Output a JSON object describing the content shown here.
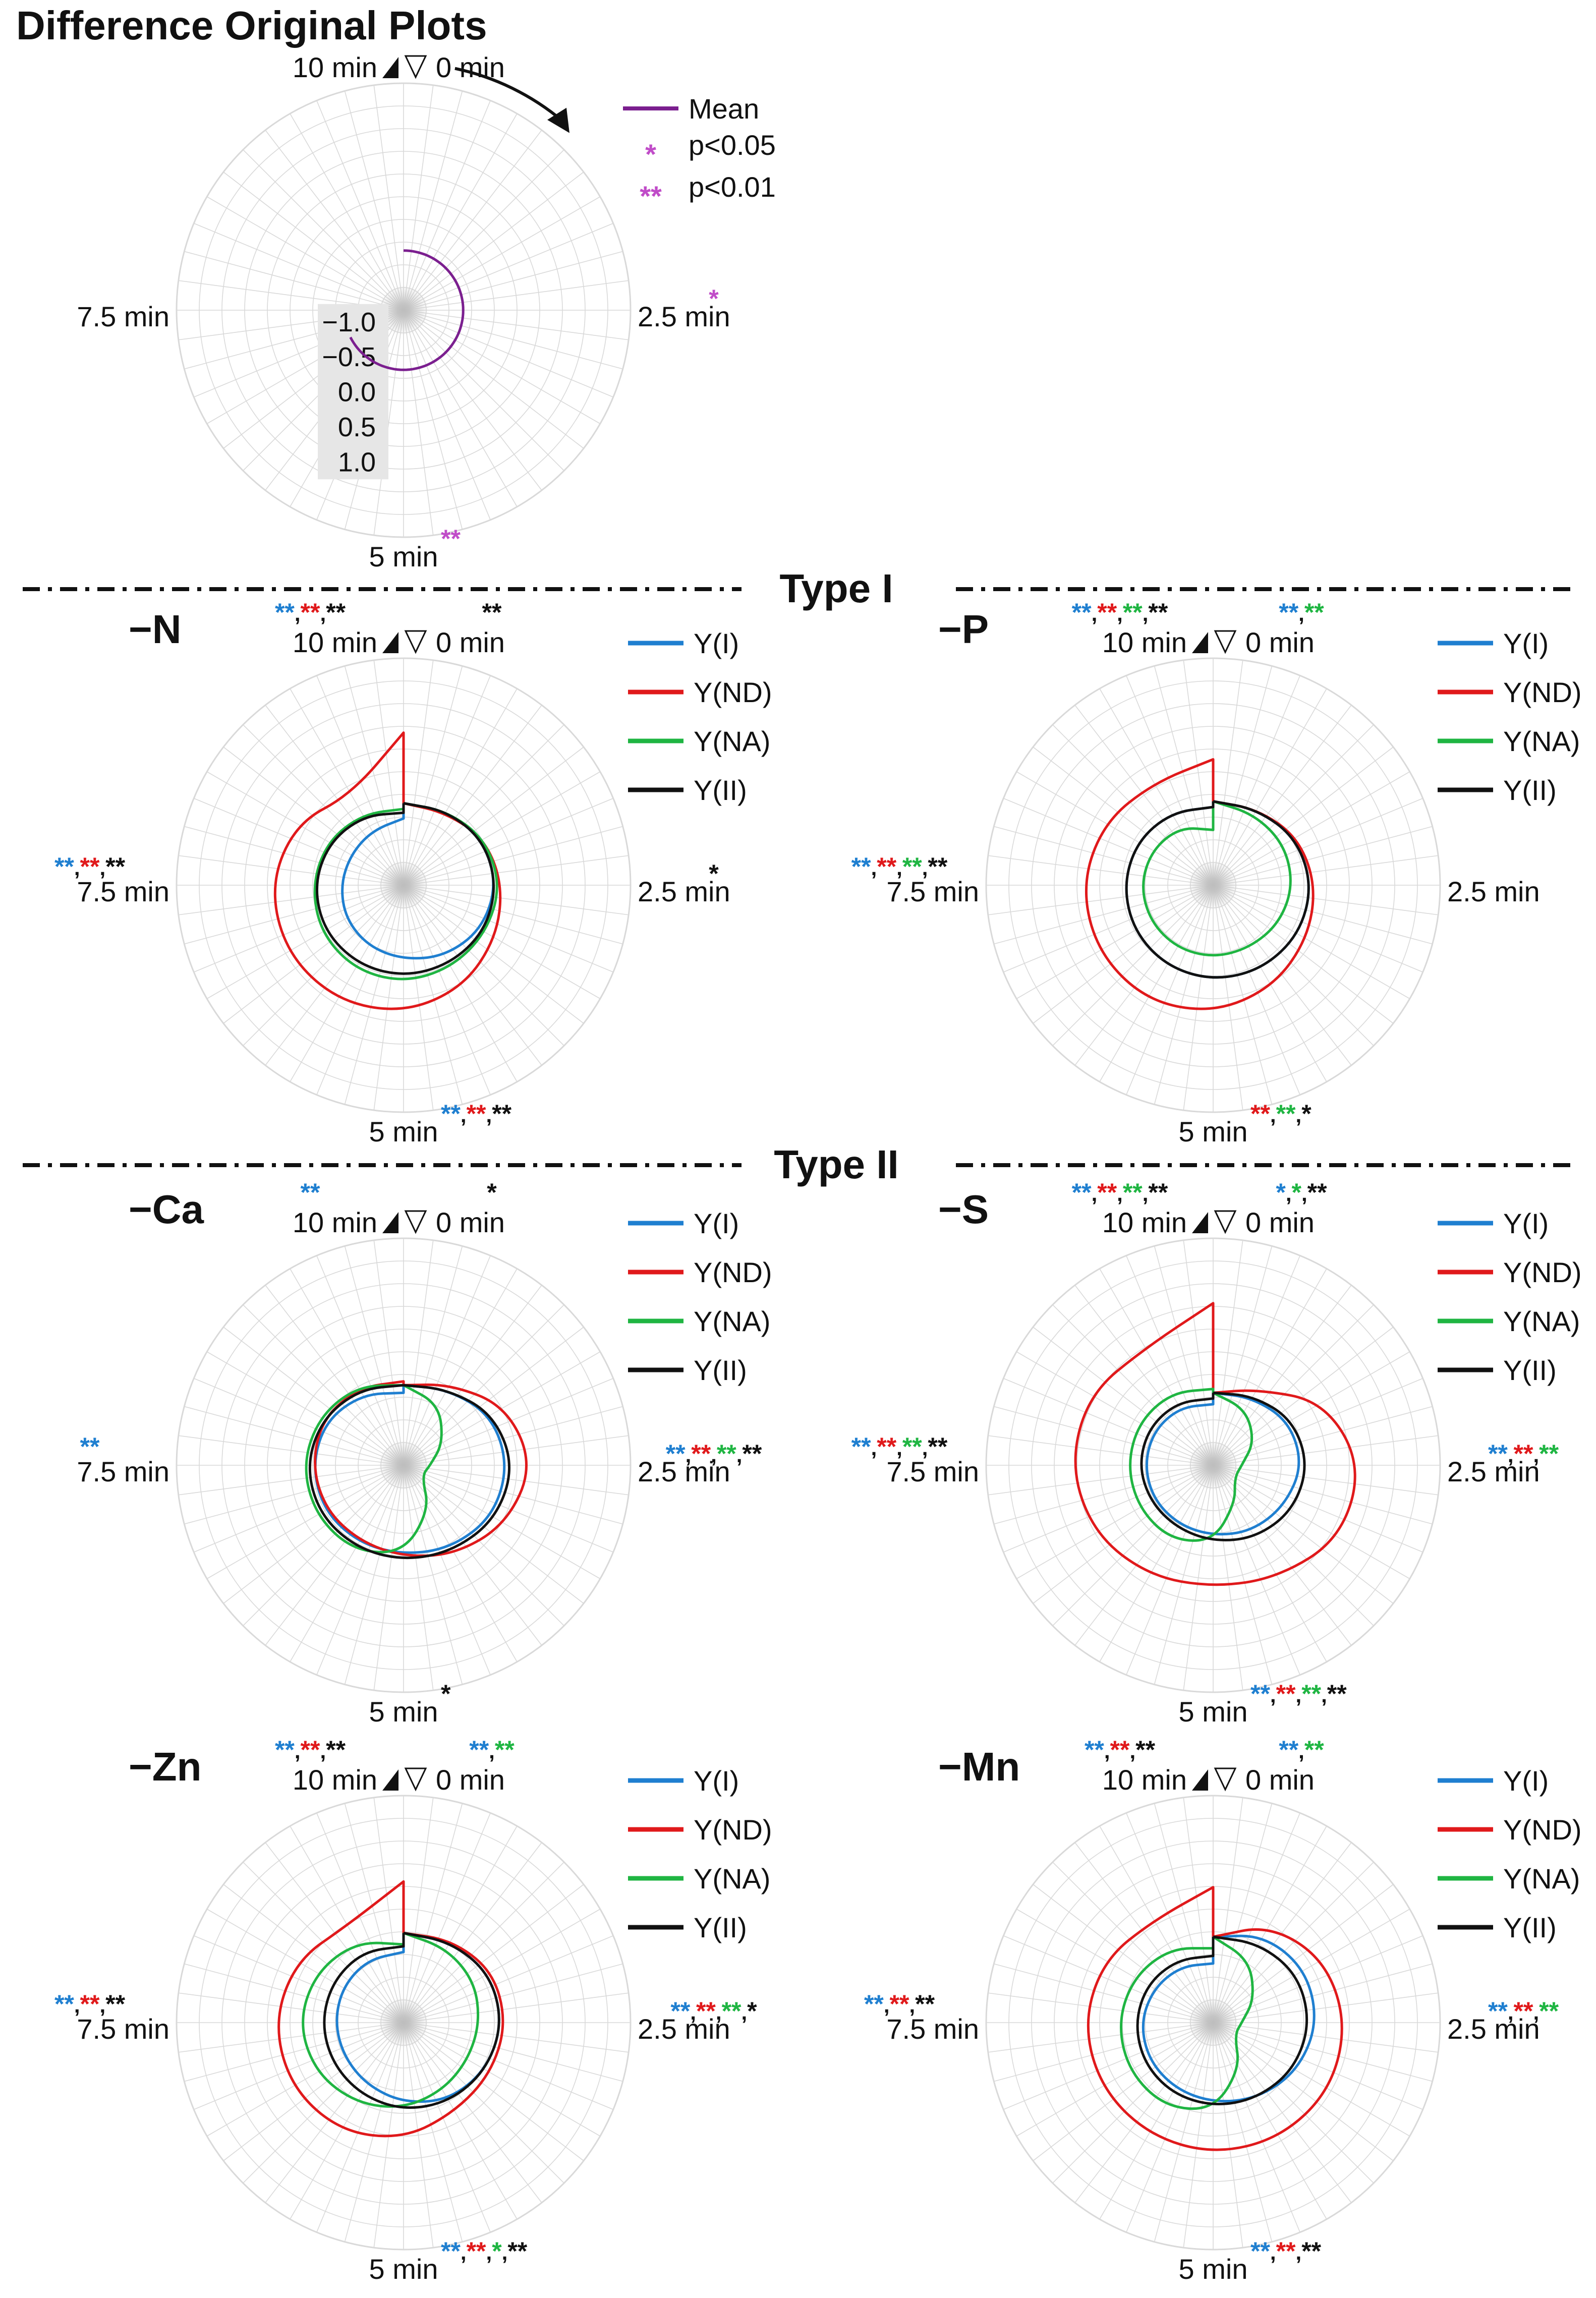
{
  "figure_title": "Difference Original Plots",
  "section_labels": [
    "Type I",
    "Type II"
  ],
  "colors": {
    "mean": "#7b1f8f",
    "mean_sig": "#c04cc8",
    "Y(I)": "#1f7fd0",
    "Y(ND)": "#e0191b",
    "Y(NA)": "#1fb542",
    "Y(II)": "#111111",
    "grid": "#d9d9d9",
    "center": "#bdbdbd"
  },
  "chart_data": [
    {
      "id": "mean",
      "type": "radar",
      "title": "Difference Original Plots",
      "axis_labels": {
        "top_left": "10 min",
        "top_right": "0 min",
        "right": "2.5 min",
        "bottom": "5 min",
        "left": "7.5 min"
      },
      "radial_ticks": [
        "−1.0",
        "−0.5",
        "0.0",
        "0.5",
        "1.0"
      ],
      "rlim": [
        -1.2,
        1.2
      ],
      "legend": [
        {
          "kind": "line",
          "label": "Mean",
          "color": "mean"
        },
        {
          "kind": "mark",
          "symbol": "*",
          "label": "p<0.05",
          "color": "mean_sig"
        },
        {
          "kind": "mark",
          "symbol": "**",
          "label": "p<0.01",
          "color": "mean_sig"
        }
      ],
      "series": [
        {
          "name": "Mean",
          "color": "mean",
          "theta_deg": [
            0,
            45,
            90,
            135,
            180,
            225,
            243
          ],
          "r": [
            -0.55,
            -0.55,
            -0.55,
            -0.55,
            -0.55,
            -0.55,
            -0.55
          ]
        }
      ],
      "significance": {
        "top_left": [],
        "top_right": [],
        "right": [
          {
            "s": "*",
            "c": "mean_sig"
          }
        ],
        "bottom": [
          {
            "s": "**",
            "c": "mean_sig"
          }
        ],
        "left": []
      }
    },
    {
      "id": "N",
      "type": "radar",
      "title": "−N",
      "axis_labels": {
        "top_left": "10 min",
        "top_right": "0 min",
        "right": "2.5 min",
        "bottom": "5 min",
        "left": "7.5 min"
      },
      "legend": [
        "Y(I)",
        "Y(ND)",
        "Y(NA)",
        "Y(II)"
      ],
      "series": [
        {
          "name": "Y(I)",
          "values": [
            0.86,
            0.9,
            0.96,
            0.98,
            0.94,
            0.86,
            0.78,
            0.74,
            0.7,
            0.66,
            0.64,
            0.66,
            0.7
          ]
        },
        {
          "name": "Y(ND)",
          "values": [
            0.86,
            0.88,
            0.98,
            1.04,
            1.12,
            1.24,
            1.34,
            1.4,
            1.42,
            1.4,
            1.3,
            1.1,
            1.6
          ]
        },
        {
          "name": "Y(NA)",
          "values": [
            0.86,
            0.9,
            0.98,
            1.02,
            1.0,
            1.0,
            1.02,
            1.02,
            1.0,
            0.96,
            0.92,
            0.86,
            0.8
          ]
        },
        {
          "name": "Y(II)",
          "values": [
            0.86,
            0.9,
            0.96,
            0.98,
            0.98,
            0.96,
            0.96,
            0.96,
            0.96,
            0.94,
            0.9,
            0.84,
            0.76
          ]
        }
      ],
      "significance": {
        "top_left": [
          {
            "s": "**",
            "c": "Y(I)"
          },
          {
            "s": "**",
            "c": "Y(ND)"
          },
          {
            "s": "**",
            "c": "Y(II)"
          }
        ],
        "top_right": [
          {
            "s": "**",
            "c": "Y(II)"
          }
        ],
        "right": [
          {
            "s": "*",
            "c": "Y(II)"
          }
        ],
        "bottom": [
          {
            "s": "**",
            "c": "Y(I)"
          },
          {
            "s": "**",
            "c": "Y(ND)"
          },
          {
            "s": "**",
            "c": "Y(II)"
          }
        ],
        "left": [
          {
            "s": "**",
            "c": "Y(I)"
          },
          {
            "s": "**",
            "c": "Y(ND)"
          },
          {
            "s": "**",
            "c": "Y(II)"
          }
        ]
      }
    },
    {
      "id": "P",
      "type": "radar",
      "title": "−P",
      "axis_labels": {
        "top_left": "10 min",
        "top_right": "0 min",
        "right": "2.5 min",
        "bottom": "5 min",
        "left": "7.5 min"
      },
      "legend": [
        "Y(I)",
        "Y(ND)",
        "Y(NA)",
        "Y(II)"
      ],
      "series": [
        {
          "name": "Y(I)",
          "values": [
            0.88,
            0.92,
            1.0,
            1.04,
            1.04,
            1.02,
            1.0,
            0.98,
            0.96,
            0.94,
            0.92,
            0.88,
            0.82
          ]
        },
        {
          "name": "Y(ND)",
          "values": [
            0.88,
            0.92,
            1.02,
            1.08,
            1.14,
            1.24,
            1.34,
            1.4,
            1.4,
            1.38,
            1.32,
            1.24,
            1.32
          ]
        },
        {
          "name": "Y(NA)",
          "values": [
            0.88,
            0.86,
            0.86,
            0.84,
            0.8,
            0.76,
            0.76,
            0.76,
            0.76,
            0.76,
            0.74,
            0.7,
            0.58
          ]
        },
        {
          "name": "Y(II)",
          "values": [
            0.88,
            0.92,
            1.0,
            1.04,
            1.04,
            1.02,
            1.0,
            0.98,
            0.96,
            0.94,
            0.92,
            0.88,
            0.82
          ]
        }
      ],
      "significance": {
        "top_left": [
          {
            "s": "**",
            "c": "Y(I)"
          },
          {
            "s": "**",
            "c": "Y(ND)"
          },
          {
            "s": "**",
            "c": "Y(NA)"
          },
          {
            "s": "**",
            "c": "Y(II)"
          }
        ],
        "top_right": [
          {
            "s": "**",
            "c": "Y(I)"
          },
          {
            "s": "**",
            "c": "Y(NA)"
          }
        ],
        "right": [],
        "bottom": [
          {
            "s": "**",
            "c": "Y(ND)"
          },
          {
            "s": "**",
            "c": "Y(NA)"
          },
          {
            "s": "*",
            "c": "Y(II)"
          }
        ],
        "left": [
          {
            "s": "**",
            "c": "Y(I)"
          },
          {
            "s": "**",
            "c": "Y(ND)"
          },
          {
            "s": "**",
            "c": "Y(NA)"
          },
          {
            "s": "**",
            "c": "Y(II)"
          }
        ]
      }
    },
    {
      "id": "Ca",
      "type": "radar",
      "title": "−Ca",
      "axis_labels": {
        "top_left": "10 min",
        "top_right": "0 min",
        "right": "2.5 min",
        "bottom": "5 min",
        "left": "7.5 min"
      },
      "legend": [
        "Y(I)",
        "Y(ND)",
        "Y(NA)",
        "Y(II)"
      ],
      "series": [
        {
          "name": "Y(I)",
          "values": [
            0.84,
            0.92,
            1.06,
            1.1,
            1.08,
            1.0,
            0.94,
            0.94,
            0.96,
            0.96,
            0.94,
            0.86,
            0.76
          ]
        },
        {
          "name": "Y(ND)",
          "values": [
            0.84,
            0.98,
            1.24,
            1.36,
            1.24,
            1.08,
            0.96,
            0.92,
            0.94,
            0.96,
            0.98,
            0.94,
            0.88
          ]
        },
        {
          "name": "Y(NA)",
          "values": [
            0.84,
            0.74,
            0.48,
            0.28,
            0.22,
            0.54,
            0.92,
            1.04,
            1.06,
            1.06,
            1.02,
            0.96,
            0.84
          ]
        },
        {
          "name": "Y(II)",
          "values": [
            0.84,
            0.92,
            1.08,
            1.16,
            1.12,
            1.04,
            1.0,
            1.0,
            1.02,
            1.02,
            0.98,
            0.92,
            0.84
          ]
        }
      ],
      "significance": {
        "top_left": [
          {
            "s": "**",
            "c": "Y(I)"
          }
        ],
        "top_right": [
          {
            "s": "*",
            "c": "Y(II)"
          }
        ],
        "right": [
          {
            "s": "**",
            "c": "Y(I)"
          },
          {
            "s": "**",
            "c": "Y(ND)"
          },
          {
            "s": "**",
            "c": "Y(NA)"
          },
          {
            "s": "**",
            "c": "Y(II)"
          }
        ],
        "bottom": [
          {
            "s": "*",
            "c": "Y(II)"
          }
        ],
        "left": [
          {
            "s": "**",
            "c": "Y(I)"
          }
        ]
      }
    },
    {
      "id": "S",
      "type": "radar",
      "title": "−S",
      "axis_labels": {
        "top_left": "10 min",
        "top_right": "0 min",
        "right": "2.5 min",
        "bottom": "5 min",
        "left": "7.5 min"
      },
      "legend": [
        "Y(I)",
        "Y(ND)",
        "Y(NA)",
        "Y(II)"
      ],
      "series": [
        {
          "name": "Y(I)",
          "values": [
            0.76,
            0.82,
            0.92,
            0.94,
            0.86,
            0.8,
            0.74,
            0.72,
            0.72,
            0.72,
            0.72,
            0.7,
            0.64
          ]
        },
        {
          "name": "Y(ND)",
          "values": [
            0.76,
            0.92,
            1.34,
            1.56,
            1.54,
            1.36,
            1.28,
            1.34,
            1.44,
            1.5,
            1.5,
            1.42,
            1.7
          ]
        },
        {
          "name": "Y(NA)",
          "values": [
            0.76,
            0.68,
            0.5,
            0.3,
            0.26,
            0.46,
            0.8,
            0.9,
            0.9,
            0.9,
            0.9,
            0.88,
            0.8
          ]
        },
        {
          "name": "Y(II)",
          "values": [
            0.76,
            0.84,
            0.96,
            1.0,
            0.96,
            0.88,
            0.8,
            0.76,
            0.76,
            0.78,
            0.78,
            0.76,
            0.7
          ]
        }
      ],
      "significance": {
        "top_left": [
          {
            "s": "**",
            "c": "Y(I)"
          },
          {
            "s": "**",
            "c": "Y(ND)"
          },
          {
            "s": "**",
            "c": "Y(NA)"
          },
          {
            "s": "**",
            "c": "Y(II)"
          }
        ],
        "top_right": [
          {
            "s": "*",
            "c": "Y(I)"
          },
          {
            "s": "*",
            "c": "Y(NA)"
          },
          {
            "s": "**",
            "c": "Y(II)"
          }
        ],
        "right": [
          {
            "s": "**",
            "c": "Y(I)"
          },
          {
            "s": "**",
            "c": "Y(ND)"
          },
          {
            "s": "**",
            "c": "Y(NA)"
          }
        ],
        "bottom": [
          {
            "s": "**",
            "c": "Y(I)"
          },
          {
            "s": "**",
            "c": "Y(ND)"
          },
          {
            "s": "**",
            "c": "Y(NA)"
          },
          {
            "s": "**",
            "c": "Y(II)"
          }
        ],
        "left": [
          {
            "s": "**",
            "c": "Y(I)"
          },
          {
            "s": "**",
            "c": "Y(ND)"
          },
          {
            "s": "**",
            "c": "Y(NA)"
          },
          {
            "s": "**",
            "c": "Y(II)"
          }
        ]
      }
    },
    {
      "id": "Zn",
      "type": "radar",
      "title": "−Zn",
      "axis_labels": {
        "top_left": "10 min",
        "top_right": "0 min",
        "right": "2.5 min",
        "bottom": "5 min",
        "left": "7.5 min"
      },
      "legend": [
        "Y(I)",
        "Y(ND)",
        "Y(NA)",
        "Y(II)"
      ],
      "series": [
        {
          "name": "Y(I)",
          "values": [
            0.94,
            0.98,
            1.04,
            1.04,
            1.0,
            0.94,
            0.84,
            0.76,
            0.72,
            0.72,
            0.74,
            0.76,
            0.74
          ]
        },
        {
          "name": "Y(ND)",
          "values": [
            0.94,
            1.0,
            1.08,
            1.08,
            1.06,
            1.08,
            1.22,
            1.32,
            1.36,
            1.36,
            1.3,
            1.18,
            1.48
          ]
        },
        {
          "name": "Y(NA)",
          "values": [
            0.94,
            0.9,
            0.86,
            0.8,
            0.78,
            0.82,
            0.9,
            0.98,
            1.06,
            1.1,
            1.06,
            0.98,
            0.82
          ]
        },
        {
          "name": "Y(II)",
          "values": [
            0.94,
            0.98,
            1.04,
            1.04,
            1.0,
            0.96,
            0.92,
            0.88,
            0.86,
            0.86,
            0.86,
            0.86,
            0.8
          ]
        }
      ],
      "significance": {
        "top_left": [
          {
            "s": "**",
            "c": "Y(I)"
          },
          {
            "s": "**",
            "c": "Y(ND)"
          },
          {
            "s": "**",
            "c": "Y(II)"
          }
        ],
        "top_right": [
          {
            "s": "**",
            "c": "Y(I)"
          },
          {
            "s": "**",
            "c": "Y(NA)"
          }
        ],
        "right": [
          {
            "s": "**",
            "c": "Y(I)"
          },
          {
            "s": "**",
            "c": "Y(ND)"
          },
          {
            "s": "**",
            "c": "Y(NA)"
          },
          {
            "s": "*",
            "c": "Y(II)"
          }
        ],
        "bottom": [
          {
            "s": "**",
            "c": "Y(I)"
          },
          {
            "s": "**",
            "c": "Y(ND)"
          },
          {
            "s": "*",
            "c": "Y(NA)"
          },
          {
            "s": "**",
            "c": "Y(II)"
          }
        ],
        "left": [
          {
            "s": "**",
            "c": "Y(I)"
          },
          {
            "s": "**",
            "c": "Y(ND)"
          },
          {
            "s": "**",
            "c": "Y(II)"
          }
        ]
      }
    },
    {
      "id": "Mn",
      "type": "radar",
      "title": "−Mn",
      "axis_labels": {
        "top_left": "10 min",
        "top_right": "0 min",
        "right": "2.5 min",
        "bottom": "5 min",
        "left": "7.5 min"
      },
      "legend": [
        "Y(I)",
        "Y(ND)",
        "Y(NA)",
        "Y(II)"
      ],
      "series": [
        {
          "name": "Y(I)",
          "values": [
            0.9,
            1.06,
            1.12,
            1.1,
            1.02,
            0.92,
            0.84,
            0.8,
            0.78,
            0.76,
            0.72,
            0.68,
            0.62
          ]
        },
        {
          "name": "Y(ND)",
          "values": [
            0.9,
            1.18,
            1.34,
            1.4,
            1.42,
            1.4,
            1.38,
            1.36,
            1.36,
            1.36,
            1.32,
            1.24,
            1.42
          ]
        },
        {
          "name": "Y(NA)",
          "values": [
            0.9,
            0.76,
            0.5,
            0.3,
            0.26,
            0.56,
            0.92,
            1.02,
            1.02,
            1.0,
            0.96,
            0.9,
            0.78
          ]
        },
        {
          "name": "Y(II)",
          "values": [
            0.9,
            0.96,
            1.02,
            1.02,
            0.98,
            0.92,
            0.88,
            0.86,
            0.84,
            0.82,
            0.8,
            0.76,
            0.7
          ]
        }
      ],
      "significance": {
        "top_left": [
          {
            "s": "**",
            "c": "Y(I)"
          },
          {
            "s": "**",
            "c": "Y(ND)"
          },
          {
            "s": "**",
            "c": "Y(II)"
          }
        ],
        "top_right": [
          {
            "s": "**",
            "c": "Y(I)"
          },
          {
            "s": "**",
            "c": "Y(NA)"
          }
        ],
        "right": [
          {
            "s": "**",
            "c": "Y(I)"
          },
          {
            "s": "**",
            "c": "Y(ND)"
          },
          {
            "s": "**",
            "c": "Y(NA)"
          }
        ],
        "bottom": [
          {
            "s": "**",
            "c": "Y(I)"
          },
          {
            "s": "**",
            "c": "Y(ND)"
          },
          {
            "s": "**",
            "c": "Y(II)"
          }
        ],
        "left": [
          {
            "s": "**",
            "c": "Y(I)"
          },
          {
            "s": "**",
            "c": "Y(ND)"
          },
          {
            "s": "**",
            "c": "Y(II)"
          }
        ]
      }
    }
  ]
}
